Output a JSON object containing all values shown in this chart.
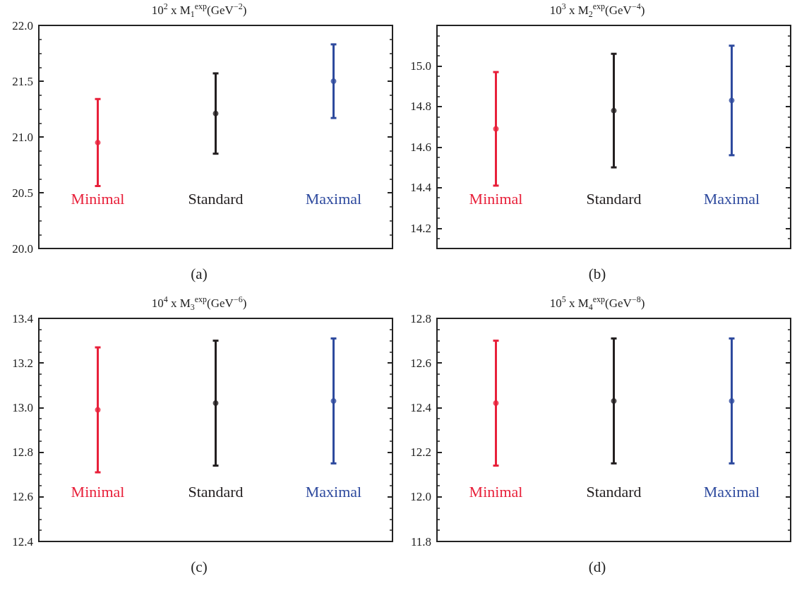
{
  "chart_data": [
    {
      "type": "scatter",
      "title": "10$^{2}$ x M$_{1}$$^{exp}$(GeV$^{−2}$)",
      "annotations": [
        "(a)"
      ],
      "categories": [
        "Minimal",
        "Standard",
        "Maximal"
      ],
      "marker": "circle",
      "ylim": [
        20.0,
        22.0
      ],
      "yticks": [
        {
          "value": 20,
          "label": "20.0"
        },
        20.5,
        {
          "value": 21,
          "label": "21.0"
        },
        21.5,
        {
          "value": 22,
          "label": "22.0"
        }
      ],
      "colors": [
        "#e8203a",
        "#231f20",
        "#2e4a9e"
      ],
      "values": [
        20.95,
        21.21,
        21.5
      ],
      "errors": [
        0.39,
        0.36,
        0.33
      ]
    },
    {
      "type": "scatter",
      "title": "10$^{3}$ x M$_{2}$$^{exp}$(GeV$^{−4}$)",
      "annotations": [
        "(b)"
      ],
      "categories": [
        "Minimal",
        "Standard",
        "Maximal"
      ],
      "marker": "circle",
      "ylim": [
        14.1,
        15.2
      ],
      "yticks": [
        14.2,
        14.4,
        14.6,
        14.8,
        {
          "value": 15,
          "label": "15.0"
        }
      ],
      "colors": [
        "#e8203a",
        "#231f20",
        "#2e4a9e"
      ],
      "values": [
        14.69,
        14.78,
        14.83
      ],
      "errors": [
        0.28,
        0.28,
        0.27
      ]
    },
    {
      "type": "scatter",
      "title": "10$^{4}$ x M$_{3}$$^{exp}$(GeV$^{−6}$)",
      "annotations": [
        "(c)"
      ],
      "categories": [
        "Minimal",
        "Standard",
        "Maximal"
      ],
      "marker": "circle",
      "ylim": [
        12.4,
        13.4
      ],
      "yticks": [
        12.4,
        12.6,
        12.8,
        {
          "value": 13,
          "label": "13.0"
        },
        13.2,
        13.4
      ],
      "colors": [
        "#e8203a",
        "#231f20",
        "#2e4a9e"
      ],
      "values": [
        12.99,
        13.02,
        13.03
      ],
      "errors": [
        0.28,
        0.28,
        0.28
      ]
    },
    {
      "type": "scatter",
      "title": "10$^{5}$ x M$_{4}$$^{exp}$(GeV$^{−8}$)",
      "annotations": [
        "(d)"
      ],
      "categories": [
        "Minimal",
        "Standard",
        "Maximal"
      ],
      "marker": "circle",
      "ylim": [
        11.8,
        12.8
      ],
      "yticks": [
        11.8,
        {
          "value": 12,
          "label": "12.0"
        },
        12.2,
        12.4,
        12.6,
        12.8
      ],
      "colors": [
        "#e8203a",
        "#231f20",
        "#2e4a9e"
      ],
      "values": [
        12.42,
        12.43,
        12.43
      ],
      "errors": [
        0.28,
        0.28,
        0.28
      ]
    }
  ]
}
